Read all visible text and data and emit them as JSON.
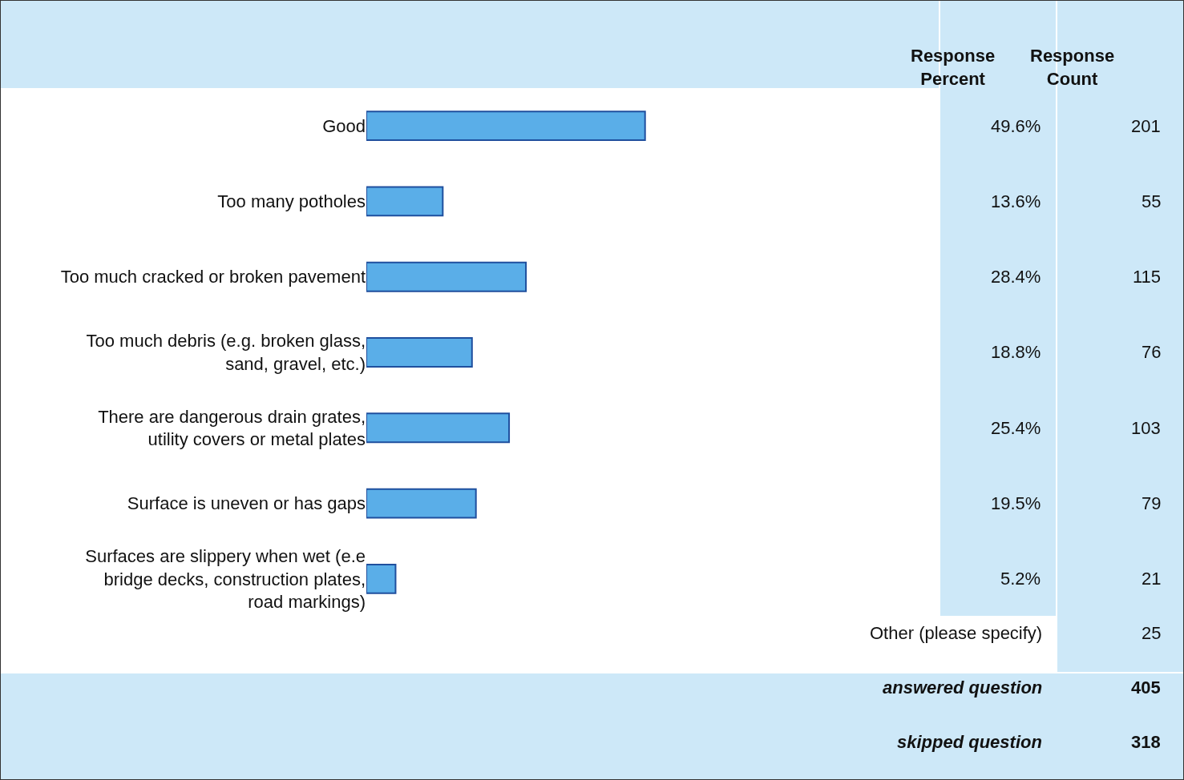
{
  "chart_data": {
    "type": "bar",
    "orientation": "horizontal",
    "tick_labels": "y",
    "legend": false,
    "categories": [
      "Good",
      "Too many potholes",
      "Too much cracked or broken pavement",
      "Too much debris (e.g. broken glass, sand, gravel, etc.)",
      "There are dangerous drain grates, utility covers or metal plates",
      "Surface is uneven or has gaps",
      "Surfaces are slippery when wet (e.e bridge decks, construction plates, road markings)"
    ],
    "values": [
      49.6,
      13.6,
      28.4,
      18.8,
      25.4,
      19.5,
      5.2
    ],
    "value_labels": [
      "49.6%",
      "13.6%",
      "28.4%",
      "18.8%",
      "25.4%",
      "19.5%",
      "5.2%"
    ],
    "color": "#5aaee8",
    "annotations": [
      "Response Percent",
      "Response Count",
      "201",
      "55",
      "115",
      "76",
      "103",
      "79",
      "21",
      "Other (please specify)",
      "25",
      "answered question",
      "405",
      "skipped question",
      "318"
    ]
  }
}
